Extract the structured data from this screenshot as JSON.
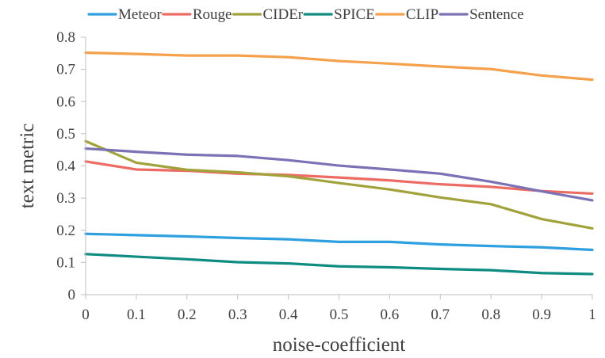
{
  "chart_data": {
    "type": "line",
    "xlabel": "noise-coefficient",
    "ylabel": "text metric",
    "x": [
      0,
      0.1,
      0.2,
      0.3,
      0.4,
      0.5,
      0.6,
      0.7,
      0.8,
      0.9,
      1
    ],
    "x_tick_labels": [
      "0",
      "0.1",
      "0.2",
      "0.3",
      "0.4",
      "0.5",
      "0.6",
      "0.7",
      "0.8",
      "0.9",
      "1"
    ],
    "ylim": [
      0,
      0.8
    ],
    "y_ticks": [
      0,
      0.1,
      0.2,
      0.3,
      0.4,
      0.5,
      0.6,
      0.7,
      0.8
    ],
    "y_tick_labels": [
      "0",
      "0.1",
      "0.2",
      "0.3",
      "0.4",
      "0.5",
      "0.6",
      "0.7",
      "0.8"
    ],
    "grid": false,
    "legend_position": "top",
    "series": [
      {
        "name": "Meteor",
        "color": "#2E9FDF",
        "values": [
          0.189,
          0.185,
          0.181,
          0.176,
          0.172,
          0.164,
          0.164,
          0.156,
          0.151,
          0.147,
          0.139
        ]
      },
      {
        "name": "Rouge",
        "color": "#EC6B62",
        "values": [
          0.414,
          0.389,
          0.385,
          0.376,
          0.372,
          0.364,
          0.355,
          0.343,
          0.335,
          0.322,
          0.314
        ]
      },
      {
        "name": "CIDEr",
        "color": "#A1A23A",
        "values": [
          0.477,
          0.41,
          0.388,
          0.38,
          0.368,
          0.347,
          0.327,
          0.302,
          0.281,
          0.235,
          0.206
        ]
      },
      {
        "name": "SPICE",
        "color": "#0E8C82",
        "values": [
          0.126,
          0.118,
          0.11,
          0.101,
          0.097,
          0.088,
          0.085,
          0.08,
          0.076,
          0.067,
          0.064
        ]
      },
      {
        "name": "CLIP",
        "color": "#F5A04A",
        "values": [
          0.752,
          0.748,
          0.743,
          0.743,
          0.738,
          0.726,
          0.718,
          0.709,
          0.701,
          0.681,
          0.668
        ]
      },
      {
        "name": "Sentence",
        "color": "#7B72B5",
        "values": [
          0.454,
          0.444,
          0.435,
          0.431,
          0.418,
          0.401,
          0.389,
          0.376,
          0.351,
          0.321,
          0.293
        ]
      }
    ]
  }
}
